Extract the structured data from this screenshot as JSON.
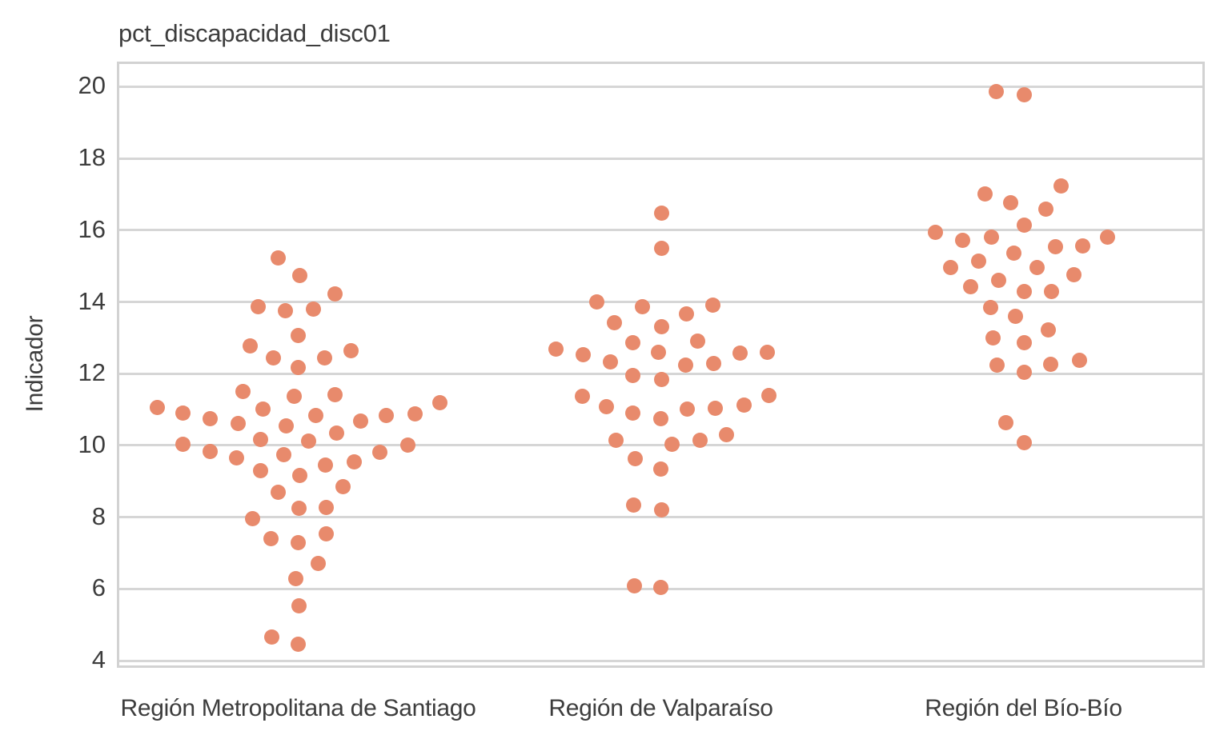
{
  "chart_data": {
    "type": "scatter",
    "subtype": "swarm",
    "title": "pct_discapacidad_disc01",
    "ylabel": "Indicador",
    "xlabel": "",
    "yticks": [
      4,
      6,
      8,
      10,
      12,
      14,
      16,
      18,
      20
    ],
    "ylim": [
      3.8,
      20.7
    ],
    "grid": true,
    "legend": "none",
    "categories": [
      "Región Metropolitana de Santiago",
      "Región de Valparaíso",
      "Región del Bío-Bío"
    ],
    "point_format": [
      "dx_px_from_category_center",
      "indicador_value"
    ],
    "series": [
      {
        "name": "Región Metropolitana de Santiago",
        "points": [
          [
            -25,
            15.23
          ],
          [
            2,
            14.73
          ],
          [
            46,
            14.23
          ],
          [
            -50,
            13.86
          ],
          [
            -16,
            13.75
          ],
          [
            19,
            13.79
          ],
          [
            0,
            13.07
          ],
          [
            -60,
            12.78
          ],
          [
            -31,
            12.43
          ],
          [
            33,
            12.44
          ],
          [
            66,
            12.64
          ],
          [
            0,
            12.18
          ],
          [
            -69,
            11.5
          ],
          [
            -5,
            11.38
          ],
          [
            46,
            11.41
          ],
          [
            -176,
            11.05
          ],
          [
            -144,
            10.9
          ],
          [
            177,
            11.2
          ],
          [
            -110,
            10.74
          ],
          [
            -44,
            11.02
          ],
          [
            22,
            10.83
          ],
          [
            78,
            10.68
          ],
          [
            110,
            10.83
          ],
          [
            146,
            10.87
          ],
          [
            -75,
            10.61
          ],
          [
            -15,
            10.54
          ],
          [
            48,
            10.34
          ],
          [
            -144,
            10.04
          ],
          [
            -47,
            10.16
          ],
          [
            13,
            10.13
          ],
          [
            102,
            9.81
          ],
          [
            137,
            10.01
          ],
          [
            -110,
            9.83
          ],
          [
            -18,
            9.75
          ],
          [
            -77,
            9.65
          ],
          [
            34,
            9.46
          ],
          [
            70,
            9.55
          ],
          [
            -47,
            9.3
          ],
          [
            2,
            9.16
          ],
          [
            -25,
            8.69
          ],
          [
            56,
            8.86
          ],
          [
            1,
            8.24
          ],
          [
            35,
            8.26
          ],
          [
            -57,
            7.95
          ],
          [
            -34,
            7.4
          ],
          [
            0,
            7.28
          ],
          [
            35,
            7.53
          ],
          [
            25,
            6.72
          ],
          [
            -3,
            6.28
          ],
          [
            1,
            5.52
          ],
          [
            -33,
            4.65
          ],
          [
            0,
            4.46
          ]
        ]
      },
      {
        "name": "Región de Valparaíso",
        "points": [
          [
            1,
            16.48
          ],
          [
            1,
            15.49
          ],
          [
            -80,
            14.0
          ],
          [
            -23,
            13.86
          ],
          [
            32,
            13.67
          ],
          [
            65,
            13.91
          ],
          [
            -58,
            13.41
          ],
          [
            1,
            13.32
          ],
          [
            -131,
            12.69
          ],
          [
            -97,
            12.52
          ],
          [
            -63,
            12.32
          ],
          [
            -35,
            12.86
          ],
          [
            -3,
            12.6
          ],
          [
            46,
            12.91
          ],
          [
            31,
            12.23
          ],
          [
            66,
            12.28
          ],
          [
            99,
            12.57
          ],
          [
            133,
            12.6
          ],
          [
            -35,
            11.96
          ],
          [
            1,
            11.84
          ],
          [
            -98,
            11.38
          ],
          [
            -68,
            11.08
          ],
          [
            -35,
            10.9
          ],
          [
            0,
            10.74
          ],
          [
            33,
            11.02
          ],
          [
            68,
            11.04
          ],
          [
            104,
            11.12
          ],
          [
            135,
            11.4
          ],
          [
            -56,
            10.14
          ],
          [
            14,
            10.04
          ],
          [
            49,
            10.14
          ],
          [
            82,
            10.3
          ],
          [
            -32,
            9.63
          ],
          [
            0,
            9.35
          ],
          [
            -34,
            8.33
          ],
          [
            1,
            8.2
          ],
          [
            -33,
            6.09
          ],
          [
            0,
            6.03
          ]
        ]
      },
      {
        "name": "Región del Bío-Bío",
        "points": [
          [
            -34,
            19.87
          ],
          [
            1,
            19.77
          ],
          [
            -48,
            17.01
          ],
          [
            -16,
            16.76
          ],
          [
            47,
            17.23
          ],
          [
            28,
            16.59
          ],
          [
            1,
            16.15
          ],
          [
            -110,
            15.94
          ],
          [
            -76,
            15.72
          ],
          [
            -40,
            15.8
          ],
          [
            105,
            15.81
          ],
          [
            40,
            15.53
          ],
          [
            74,
            15.57
          ],
          [
            -12,
            15.37
          ],
          [
            -91,
            14.96
          ],
          [
            -56,
            15.14
          ],
          [
            17,
            14.97
          ],
          [
            63,
            14.76
          ],
          [
            -31,
            14.61
          ],
          [
            -66,
            14.43
          ],
          [
            1,
            14.29
          ],
          [
            35,
            14.28
          ],
          [
            -41,
            13.85
          ],
          [
            -10,
            13.59
          ],
          [
            31,
            13.23
          ],
          [
            -38,
            12.99
          ],
          [
            1,
            12.86
          ],
          [
            -33,
            12.24
          ],
          [
            1,
            12.03
          ],
          [
            34,
            12.27
          ],
          [
            70,
            12.37
          ],
          [
            -22,
            10.64
          ],
          [
            1,
            10.07
          ]
        ]
      }
    ],
    "colors": {
      "dot": "#e88a6c",
      "grid": "#d6d6d6",
      "spine": "#d2d2d2",
      "text": "#3d3d3d",
      "background": "#ffffff"
    }
  }
}
